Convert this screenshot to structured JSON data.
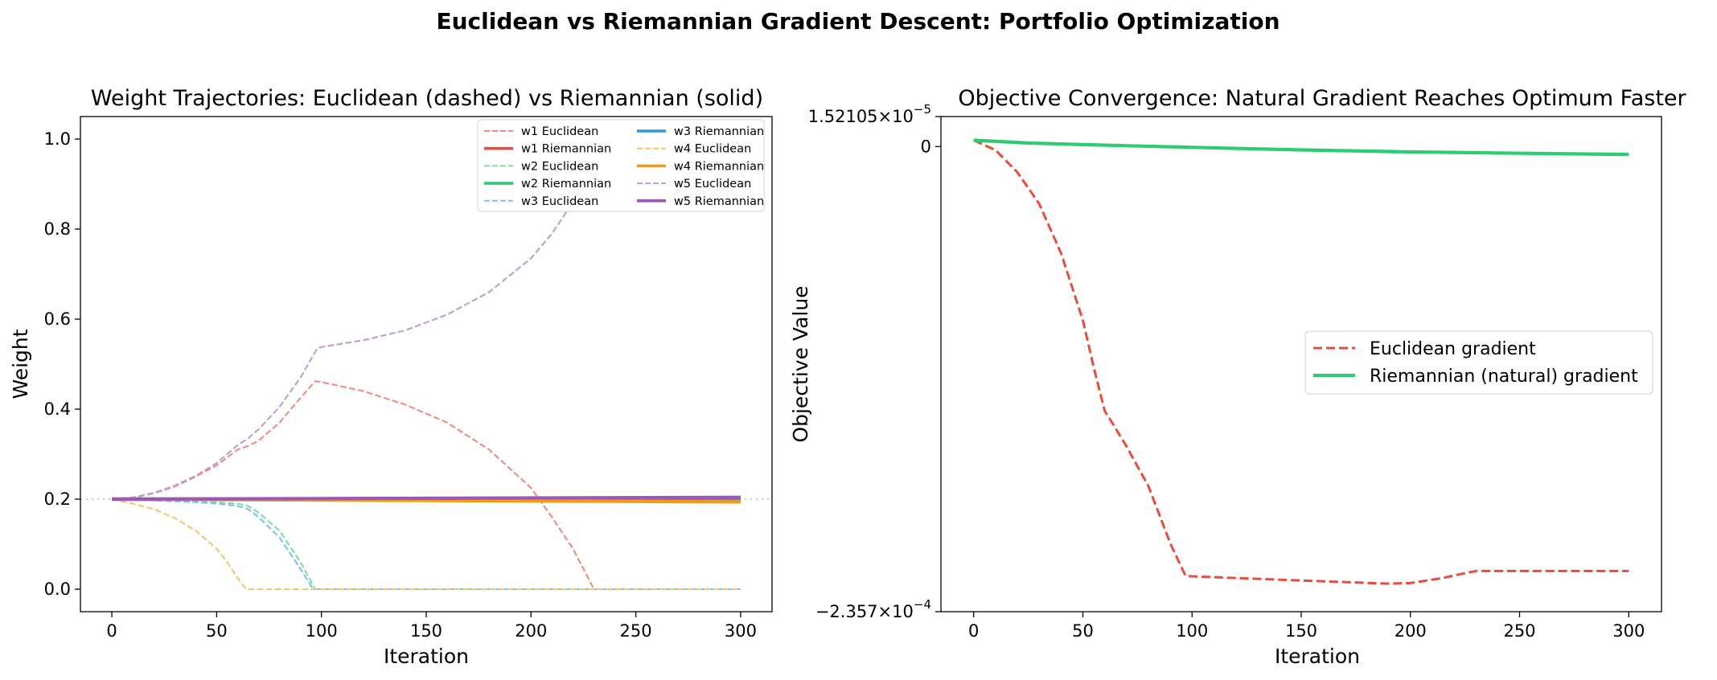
{
  "figure": {
    "suptitle": "Euclidean vs Riemannian Gradient Descent: Portfolio Optimization"
  },
  "chart_data": [
    {
      "type": "line",
      "title": "Weight Trajectories: Euclidean (dashed) vs Riemannian (solid)",
      "xlabel": "Iteration",
      "ylabel": "Weight",
      "xlim": [
        -15,
        315
      ],
      "ylim": [
        -0.05,
        1.05
      ],
      "xticks": [
        0,
        50,
        100,
        150,
        200,
        250,
        300
      ],
      "yticks": [
        0.0,
        0.2,
        0.4,
        0.6,
        0.8,
        1.0
      ],
      "tick_labels_x": [
        "0",
        "50",
        "100",
        "150",
        "200",
        "250",
        "300"
      ],
      "tick_labels_y": [
        "0.0",
        "0.2",
        "0.4",
        "0.6",
        "0.8",
        "1.0"
      ],
      "grid": false,
      "legend_position": "top-right",
      "reference_line": {
        "y": 0.2,
        "style": "dotted",
        "color": "#c8c8c8"
      },
      "series": [
        {
          "name": "w1 Euclidean",
          "color": "#f08c7e",
          "style": "dashed",
          "x": [
            0,
            10,
            20,
            30,
            40,
            50,
            60,
            65,
            70,
            80,
            90,
            97,
            100,
            120,
            140,
            160,
            180,
            200,
            210,
            220,
            230,
            240,
            260,
            280,
            300
          ],
          "y": [
            0.2,
            0.203,
            0.213,
            0.228,
            0.25,
            0.275,
            0.31,
            0.318,
            0.33,
            0.37,
            0.425,
            0.462,
            0.46,
            0.44,
            0.41,
            0.37,
            0.31,
            0.225,
            0.16,
            0.09,
            0.0,
            0.0,
            0.0,
            0.0,
            0.0
          ]
        },
        {
          "name": "w1 Riemannian",
          "color": "#e74c3c",
          "style": "solid",
          "x": [
            0,
            300
          ],
          "y": [
            0.2,
            0.2
          ]
        },
        {
          "name": "w2 Euclidean",
          "color": "#7fdca4",
          "style": "dashed",
          "x": [
            0,
            10,
            20,
            30,
            40,
            50,
            60,
            65,
            70,
            80,
            90,
            97,
            100,
            150,
            200,
            250,
            300
          ],
          "y": [
            0.2,
            0.199,
            0.197,
            0.196,
            0.195,
            0.193,
            0.19,
            0.185,
            0.17,
            0.13,
            0.06,
            0.0,
            0.0,
            0.0,
            0.0,
            0.0,
            0.0
          ]
        },
        {
          "name": "w2 Riemannian",
          "color": "#2ecc71",
          "style": "solid",
          "x": [
            0,
            300
          ],
          "y": [
            0.2,
            0.199
          ]
        },
        {
          "name": "w3 Euclidean",
          "color": "#7dc2e6",
          "style": "dashed",
          "x": [
            0,
            10,
            20,
            30,
            40,
            50,
            60,
            65,
            70,
            80,
            90,
            96,
            100,
            150,
            200,
            250,
            300
          ],
          "y": [
            0.2,
            0.199,
            0.197,
            0.195,
            0.193,
            0.19,
            0.185,
            0.178,
            0.16,
            0.115,
            0.045,
            0.0,
            0.0,
            0.0,
            0.0,
            0.0,
            0.0
          ]
        },
        {
          "name": "w3 Riemannian",
          "color": "#3498db",
          "style": "solid",
          "x": [
            0,
            300
          ],
          "y": [
            0.2,
            0.2
          ]
        },
        {
          "name": "w4 Euclidean",
          "color": "#f8c471",
          "style": "dashed",
          "x": [
            0,
            10,
            20,
            30,
            40,
            50,
            55,
            60,
            64,
            70,
            100,
            150,
            200,
            250,
            300
          ],
          "y": [
            0.2,
            0.19,
            0.178,
            0.158,
            0.13,
            0.09,
            0.06,
            0.025,
            0.0,
            0.0,
            0.0,
            0.0,
            0.0,
            0.0,
            0.0
          ]
        },
        {
          "name": "w4 Riemannian",
          "color": "#f39c12",
          "style": "solid",
          "x": [
            0,
            300
          ],
          "y": [
            0.2,
            0.194
          ]
        },
        {
          "name": "w5 Euclidean",
          "color": "#c39bd3",
          "style": "dashed",
          "x": [
            0,
            10,
            20,
            30,
            40,
            50,
            60,
            65,
            70,
            80,
            90,
            98,
            100,
            120,
            140,
            160,
            180,
            200,
            210,
            220,
            225
          ],
          "y": [
            0.2,
            0.204,
            0.214,
            0.23,
            0.252,
            0.28,
            0.32,
            0.335,
            0.355,
            0.405,
            0.47,
            0.535,
            0.538,
            0.553,
            0.575,
            0.61,
            0.66,
            0.735,
            0.79,
            0.86,
            0.9
          ]
        },
        {
          "name": "w5 Riemannian",
          "color": "#9b59b6",
          "style": "solid",
          "x": [
            0,
            300
          ],
          "y": [
            0.2,
            0.204
          ]
        }
      ]
    },
    {
      "type": "line",
      "title": "Objective Convergence: Natural Gradient Reaches Optimum Faster",
      "xlabel": "Iteration",
      "ylabel": "Objective Value",
      "xlim": [
        -15,
        315
      ],
      "ylim": [
        -0.0002357,
        1.52105e-05
      ],
      "xticks": [
        0,
        50,
        100,
        150,
        200,
        250,
        300
      ],
      "tick_labels_x": [
        "0",
        "50",
        "100",
        "150",
        "200",
        "250",
        "300"
      ],
      "tick_labels_y": [
        {
          "value": 1.52105e-05,
          "mantissa": "1.52105",
          "exponent": "−5"
        },
        {
          "value": 0,
          "text": "0"
        },
        {
          "value": -0.0002357,
          "mantissa": "−2.357",
          "exponent": "−4"
        }
      ],
      "grid": false,
      "legend_position": "center-right",
      "series": [
        {
          "name": "Euclidean gradient",
          "color": "#e74c3c",
          "style": "dashed",
          "x": [
            0,
            10,
            20,
            30,
            40,
            50,
            55,
            60,
            64,
            70,
            80,
            90,
            97,
            100,
            150,
            190,
            200,
            215,
            225,
            230,
            250,
            300
          ],
          "y": [
            3.2e-06,
            -1.8e-06,
            -1.3e-05,
            -2.9e-05,
            -5.4e-05,
            -8.8e-05,
            -0.000112,
            -0.000134,
            -0.000141,
            -0.000152,
            -0.000172,
            -0.000201,
            -0.0002175,
            -0.0002178,
            -0.0002199,
            -0.0002215,
            -0.0002212,
            -0.0002186,
            -0.0002162,
            -0.0002151,
            -0.0002151,
            -0.0002151
          ]
        },
        {
          "name": "Riemannian (natural) gradient",
          "color": "#2ecc71",
          "style": "solid",
          "x": [
            0,
            25,
            50,
            100,
            150,
            200,
            250,
            300
          ],
          "y": [
            3.2e-06,
            1.8e-06,
            1e-06,
            -4e-07,
            -1.7e-06,
            -2.7e-06,
            -3.4e-06,
            -4e-06
          ]
        }
      ]
    }
  ]
}
